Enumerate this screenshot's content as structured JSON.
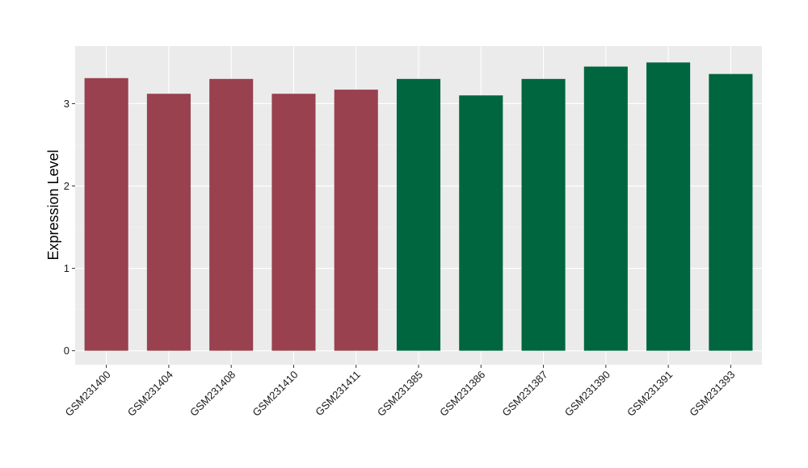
{
  "chart_data": {
    "type": "bar",
    "title": "",
    "xlabel": "",
    "ylabel": "Expression Level",
    "ylim": [
      -0.17,
      3.7
    ],
    "yticks": [
      0,
      1,
      2,
      3
    ],
    "grid": true,
    "legend": "none",
    "categories": [
      "GSM231400",
      "GSM231404",
      "GSM231408",
      "GSM231410",
      "GSM231411",
      "GSM231385",
      "GSM231386",
      "GSM231387",
      "GSM231390",
      "GSM231391",
      "GSM231393"
    ],
    "values": [
      3.31,
      3.12,
      3.3,
      3.12,
      3.17,
      3.3,
      3.1,
      3.3,
      3.45,
      3.5,
      3.36
    ],
    "group": [
      "a",
      "a",
      "a",
      "a",
      "a",
      "b",
      "b",
      "b",
      "b",
      "b",
      "b"
    ],
    "colors": {
      "a": "#99414F",
      "b": "#006640"
    },
    "style": {
      "panel_bg": "#EBEBEB",
      "grid_major": "#FFFFFF",
      "grid_minor": "#F4F4F4",
      "tick_color": "#333333"
    }
  }
}
